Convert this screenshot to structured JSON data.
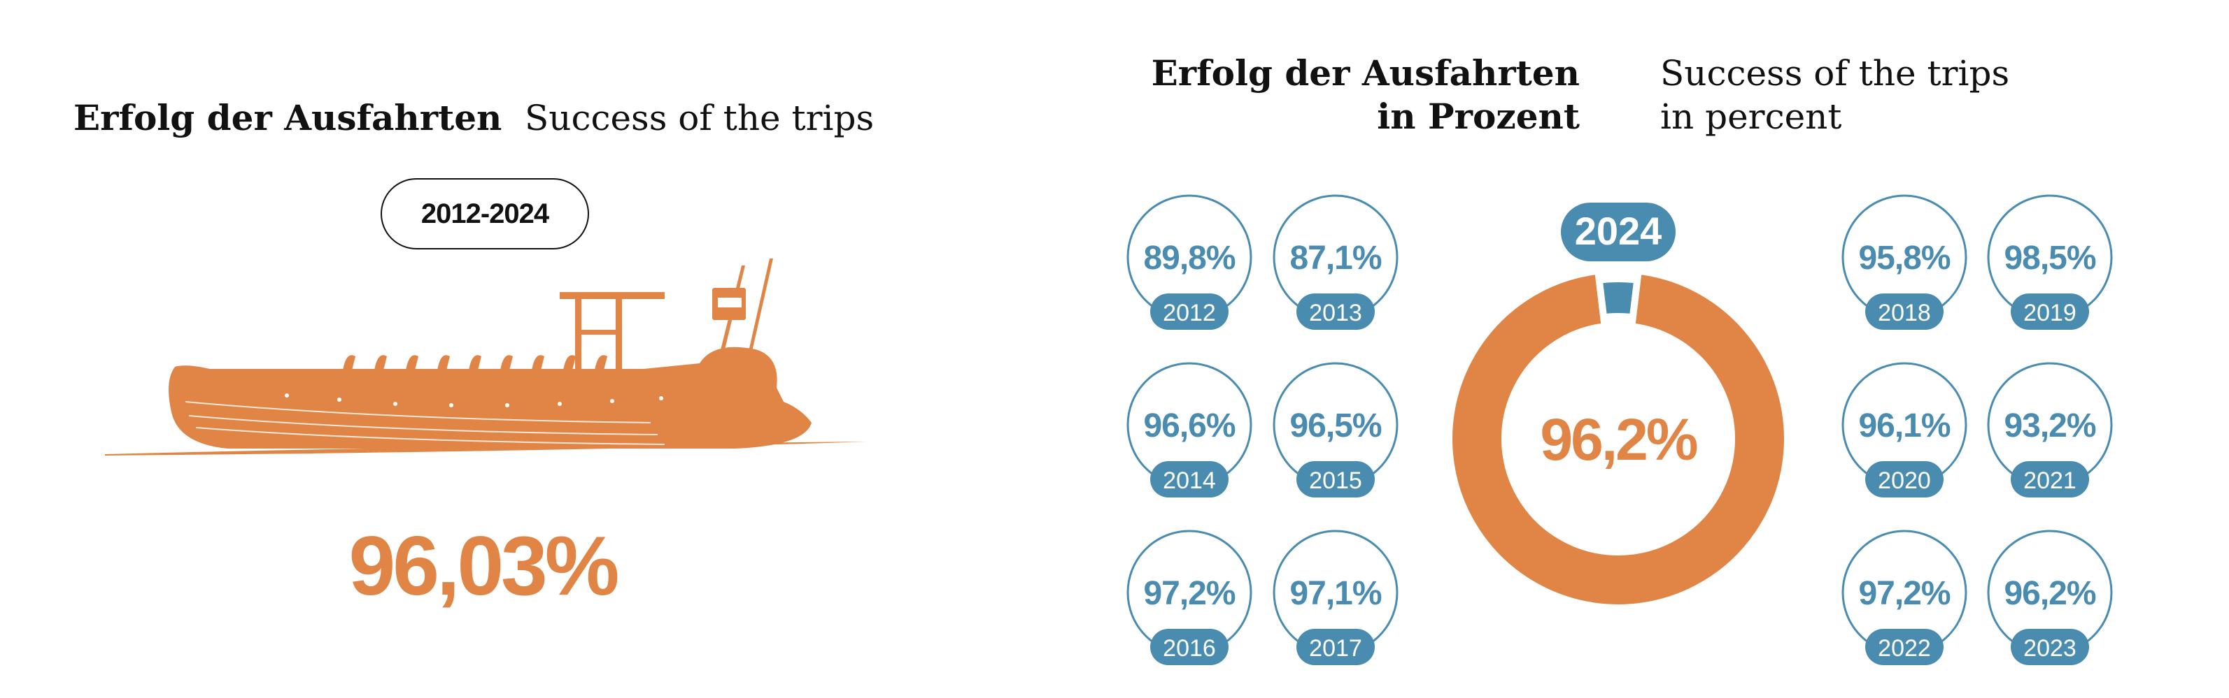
{
  "left": {
    "title_de": "Erfolg der Ausfahrten",
    "title_en": "Success of the trips",
    "period": "2012-2024",
    "overall": "96,03%"
  },
  "right": {
    "title_de_line1": "Erfolg der Ausfahrten",
    "title_de_line2": "in Prozent",
    "title_en_line1": "Success of the trips",
    "title_en_line2": "in percent"
  },
  "colors": {
    "orange": "#e08545",
    "blue": "#4a8cb0",
    "text": "#111111"
  },
  "chart_data": [
    {
      "type": "pie",
      "title": "Erfolg der Ausfahrten in Prozent",
      "categories": [
        "2012",
        "2013",
        "2014",
        "2015",
        "2016",
        "2017",
        "2018",
        "2019",
        "2020",
        "2021",
        "2022",
        "2023"
      ],
      "values": [
        89.8,
        87.1,
        96.6,
        96.5,
        97.2,
        97.1,
        95.8,
        98.5,
        96.1,
        93.2,
        97.2,
        96.2
      ],
      "labels": [
        "89,8%",
        "87,1%",
        "96,6%",
        "96,5%",
        "97,2%",
        "97,1%",
        "95,8%",
        "98,5%",
        "96,1%",
        "93,2%",
        "97,2%",
        "96,2%"
      ]
    },
    {
      "type": "pie",
      "category": "2024",
      "value": 96.2,
      "label": "96,2%"
    }
  ]
}
